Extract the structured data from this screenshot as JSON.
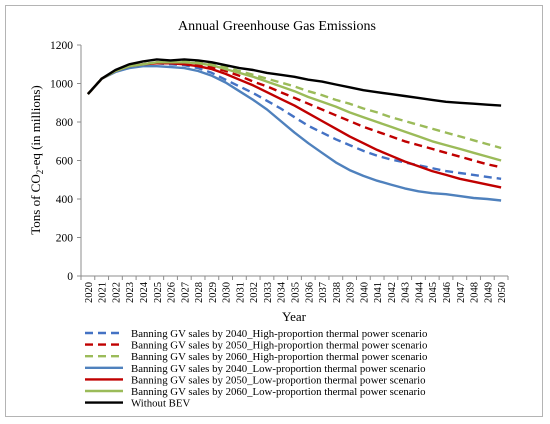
{
  "chart_data": {
    "type": "line",
    "title": "Annual Greenhouse Gas Emissions",
    "xlabel": "Year",
    "ylabel": "Tons of CO2-eq (in millions)",
    "ylim": [
      0,
      1200
    ],
    "yticks": [
      0,
      200,
      400,
      600,
      800,
      1000,
      1200
    ],
    "grid": false,
    "legend_placement": "bottom",
    "x": [
      2020,
      2021,
      2022,
      2023,
      2024,
      2025,
      2026,
      2027,
      2028,
      2029,
      2030,
      2031,
      2032,
      2033,
      2034,
      2035,
      2036,
      2037,
      2038,
      2039,
      2040,
      2041,
      2042,
      2043,
      2044,
      2045,
      2046,
      2047,
      2048,
      2049,
      2050
    ],
    "series": [
      {
        "name": "Banning GV sales by 2040_High-proportion thermal power scenario",
        "color": "#4472c4",
        "dash": true,
        "values": [
          945,
          1025,
          1065,
          1090,
          1100,
          1105,
          1100,
          1095,
          1080,
          1055,
          1020,
          985,
          950,
          910,
          870,
          825,
          780,
          745,
          710,
          680,
          650,
          625,
          605,
          590,
          575,
          560,
          545,
          535,
          525,
          515,
          505
        ]
      },
      {
        "name": "Banning GV sales by 2050_High-proportion thermal power scenario",
        "color": "#c00000",
        "dash": true,
        "values": [
          945,
          1025,
          1065,
          1090,
          1100,
          1110,
          1110,
          1105,
          1100,
          1085,
          1065,
          1040,
          1010,
          985,
          955,
          925,
          895,
          865,
          835,
          805,
          775,
          750,
          725,
          700,
          680,
          660,
          640,
          620,
          600,
          580,
          565
        ]
      },
      {
        "name": "Banning GV sales by 2060_High-proportion thermal power scenario",
        "color": "#9bbb59",
        "dash": true,
        "values": [
          945,
          1025,
          1065,
          1090,
          1100,
          1110,
          1115,
          1115,
          1110,
          1100,
          1085,
          1065,
          1045,
          1025,
          1005,
          985,
          960,
          940,
          915,
          895,
          870,
          850,
          825,
          805,
          785,
          765,
          745,
          725,
          705,
          685,
          665
        ]
      },
      {
        "name": "Banning GV sales by 2040_Low-proportion thermal power scenario",
        "color": "#4f81bd",
        "dash": false,
        "values": [
          945,
          1025,
          1060,
          1080,
          1090,
          1090,
          1085,
          1080,
          1065,
          1040,
          1005,
          960,
          915,
          865,
          805,
          745,
          690,
          640,
          590,
          550,
          520,
          495,
          475,
          455,
          440,
          430,
          425,
          415,
          405,
          400,
          392
        ]
      },
      {
        "name": "Banning GV sales by 2050_Low-proportion thermal power scenario",
        "color": "#c00000",
        "dash": false,
        "values": [
          945,
          1025,
          1065,
          1090,
          1100,
          1105,
          1105,
          1100,
          1090,
          1075,
          1050,
          1020,
          990,
          955,
          920,
          885,
          845,
          805,
          765,
          725,
          690,
          655,
          625,
          595,
          570,
          545,
          525,
          505,
          490,
          475,
          460
        ]
      },
      {
        "name": "Banning GV sales by 2060_Low-proportion thermal power scenario",
        "color": "#9bbb59",
        "dash": false,
        "values": [
          945,
          1025,
          1065,
          1090,
          1100,
          1110,
          1110,
          1110,
          1105,
          1095,
          1075,
          1055,
          1035,
          1010,
          985,
          960,
          930,
          905,
          880,
          850,
          825,
          800,
          775,
          750,
          725,
          700,
          680,
          660,
          640,
          620,
          600
        ]
      },
      {
        "name": "Without BEV",
        "color": "#000000",
        "dash": false,
        "values": [
          945,
          1025,
          1070,
          1100,
          1115,
          1125,
          1120,
          1125,
          1120,
          1110,
          1095,
          1080,
          1070,
          1055,
          1045,
          1035,
          1020,
          1010,
          995,
          980,
          965,
          955,
          945,
          935,
          925,
          915,
          905,
          900,
          895,
          890,
          885
        ]
      }
    ]
  }
}
